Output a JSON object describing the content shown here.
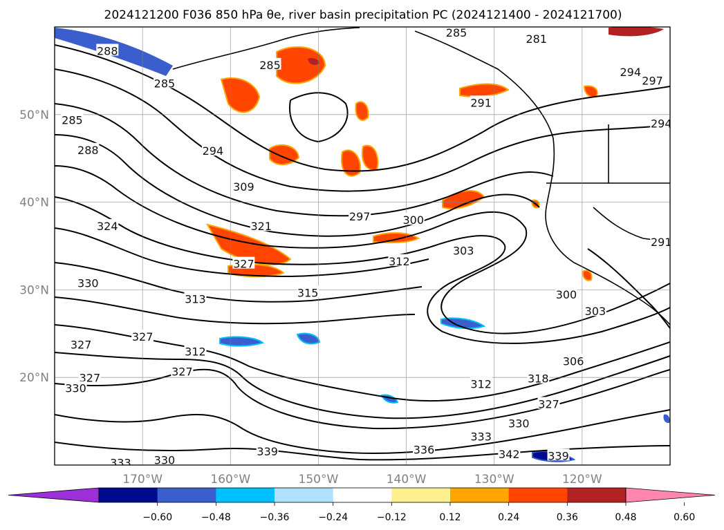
{
  "chart_data": {
    "type": "map-contour",
    "title": "2024121200 F036 850 hPa θe, river basin precipitation PC (2024121400 - 2024121700)",
    "lon_range": [
      -180,
      -110
    ],
    "lat_range": [
      10,
      60
    ],
    "lat_ticks": [
      {
        "value": 20,
        "label": "20°N"
      },
      {
        "value": 30,
        "label": "30°N"
      },
      {
        "value": 40,
        "label": "40°N"
      },
      {
        "value": 50,
        "label": "50°N"
      }
    ],
    "lon_ticks": [
      {
        "value": -170,
        "label": "170°W"
      },
      {
        "value": -160,
        "label": "160°W"
      },
      {
        "value": -150,
        "label": "150°W"
      },
      {
        "value": -140,
        "label": "140°W"
      },
      {
        "value": -130,
        "label": "130°W"
      },
      {
        "value": -120,
        "label": "120°W"
      }
    ],
    "grid": true,
    "contour_labels": [
      {
        "text": "288",
        "lon": -174,
        "lat": 57.2
      },
      {
        "text": "285",
        "lon": -167.5,
        "lat": 53.5
      },
      {
        "text": "285",
        "lon": -178,
        "lat": 49.3
      },
      {
        "text": "288",
        "lon": -176.2,
        "lat": 45.9
      },
      {
        "text": "294",
        "lon": -162,
        "lat": 45.8
      },
      {
        "text": "285",
        "lon": -155.5,
        "lat": 55.6
      },
      {
        "text": "309",
        "lon": -158.5,
        "lat": 41.7
      },
      {
        "text": "321",
        "lon": -156.5,
        "lat": 37.2
      },
      {
        "text": "324",
        "lon": -174,
        "lat": 37.2
      },
      {
        "text": "327",
        "lon": -158.5,
        "lat": 32.9
      },
      {
        "text": "330",
        "lon": -176.2,
        "lat": 30.7
      },
      {
        "text": "313",
        "lon": -164,
        "lat": 28.9
      },
      {
        "text": "315",
        "lon": -151.2,
        "lat": 29.6
      },
      {
        "text": "327",
        "lon": -170,
        "lat": 24.6
      },
      {
        "text": "327",
        "lon": -177,
        "lat": 23.7
      },
      {
        "text": "312",
        "lon": -164,
        "lat": 22.9
      },
      {
        "text": "327",
        "lon": -165.5,
        "lat": 20.6
      },
      {
        "text": "327",
        "lon": -176,
        "lat": 19.9
      },
      {
        "text": "330",
        "lon": -177.6,
        "lat": 18.7
      },
      {
        "text": "297",
        "lon": -145.3,
        "lat": 38.3
      },
      {
        "text": "300",
        "lon": -139.2,
        "lat": 37.9
      },
      {
        "text": "312",
        "lon": -140.8,
        "lat": 33.2
      },
      {
        "text": "303",
        "lon": -133.5,
        "lat": 34.4
      },
      {
        "text": "291",
        "lon": -131.5,
        "lat": 51.3
      },
      {
        "text": "285",
        "lon": -134.3,
        "lat": 59.3
      },
      {
        "text": "281",
        "lon": -125.2,
        "lat": 58.6
      },
      {
        "text": "294",
        "lon": -114.5,
        "lat": 54.8
      },
      {
        "text": "297",
        "lon": -112,
        "lat": 53.8
      },
      {
        "text": "294",
        "lon": -111,
        "lat": 48.9
      },
      {
        "text": "291",
        "lon": -111,
        "lat": 35.4
      },
      {
        "text": "300",
        "lon": -121.8,
        "lat": 29.4
      },
      {
        "text": "303",
        "lon": -118.5,
        "lat": 27.5
      },
      {
        "text": "306",
        "lon": -121,
        "lat": 21.8
      },
      {
        "text": "318",
        "lon": -125,
        "lat": 19.8
      },
      {
        "text": "312",
        "lon": -131.5,
        "lat": 19.2
      },
      {
        "text": "327",
        "lon": -123.8,
        "lat": 16.9
      },
      {
        "text": "330",
        "lon": -127.2,
        "lat": 14.7
      },
      {
        "text": "333",
        "lon": -131.5,
        "lat": 13.2
      },
      {
        "text": "336",
        "lon": -138,
        "lat": 11.7
      },
      {
        "text": "342",
        "lon": -128.3,
        "lat": 11.2
      },
      {
        "text": "339",
        "lon": -122.7,
        "lat": 11.0
      },
      {
        "text": "339",
        "lon": -155.8,
        "lat": 11.5
      },
      {
        "text": "330",
        "lon": -167.5,
        "lat": 10.5
      },
      {
        "text": "333",
        "lon": -172.5,
        "lat": 10.2
      }
    ],
    "colorbar": {
      "colors": [
        "#9b30d9",
        "#000a8f",
        "#3a5fcd",
        "#00bfff",
        "#b0e2ff",
        "#ffffff",
        "#fff08f",
        "#ffa500",
        "#ff4500",
        "#b22222",
        "#ff86ac"
      ],
      "ticks": [
        "−0.60",
        "−0.48",
        "−0.36",
        "−0.24",
        "−0.12",
        "0.12",
        "0.24",
        "0.36",
        "0.48",
        "0.60"
      ]
    }
  }
}
